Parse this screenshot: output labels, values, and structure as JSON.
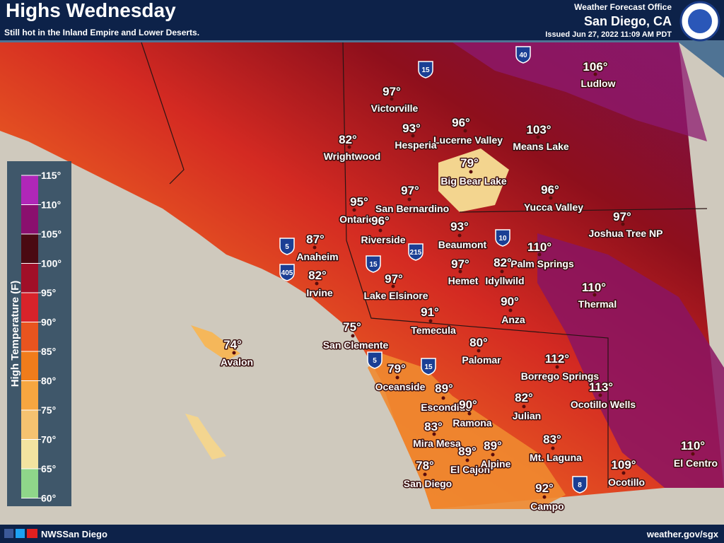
{
  "header": {
    "title": "Highs Wednesday",
    "subtitle": "Still hot in the Inland Empire and Lower Deserts.",
    "office": "Weather Forecast Office",
    "location": "San Diego, CA",
    "issued": "Issued Jun 27, 2022 11:09 AM PDT"
  },
  "legend": {
    "title": "High Temperature (F)",
    "ticks": [
      "115°",
      "110°",
      "105°",
      "100°",
      "95°",
      "90°",
      "85°",
      "80°",
      "75°",
      "70°",
      "65°",
      "60°"
    ]
  },
  "cities": [
    {
      "temp": "106°",
      "name": "Ludlow"
    },
    {
      "temp": "97°",
      "name": "Victorville"
    },
    {
      "temp": "96°",
      "name": "Lucerne Valley"
    },
    {
      "temp": "93°",
      "name": "Hesperia"
    },
    {
      "temp": "103°",
      "name": "Means Lake"
    },
    {
      "temp": "82°",
      "name": "Wrightwood"
    },
    {
      "temp": "79°",
      "name": "Big Bear Lake"
    },
    {
      "temp": "97°",
      "name": "San Bernardino"
    },
    {
      "temp": "96°",
      "name": "Yucca Valley"
    },
    {
      "temp": "95°",
      "name": "Ontario"
    },
    {
      "temp": "96°",
      "name": "Riverside"
    },
    {
      "temp": "97°",
      "name": "Joshua Tree NP"
    },
    {
      "temp": "87°",
      "name": "Anaheim"
    },
    {
      "temp": "93°",
      "name": "Beaumont"
    },
    {
      "temp": "110°",
      "name": "Palm Springs"
    },
    {
      "temp": "97°",
      "name": "Hemet"
    },
    {
      "temp": "82°",
      "name": "Idyllwild"
    },
    {
      "temp": "82°",
      "name": "Irvine"
    },
    {
      "temp": "97°",
      "name": "Lake Elsinore"
    },
    {
      "temp": "110°",
      "name": "Thermal"
    },
    {
      "temp": "90°",
      "name": "Anza"
    },
    {
      "temp": "91°",
      "name": "Temecula"
    },
    {
      "temp": "74°",
      "name": "Avalon"
    },
    {
      "temp": "75°",
      "name": "San Clemente"
    },
    {
      "temp": "80°",
      "name": "Palomar"
    },
    {
      "temp": "112°",
      "name": "Borrego Springs"
    },
    {
      "temp": "79°",
      "name": "Oceanside"
    },
    {
      "temp": "89°",
      "name": "Escondido"
    },
    {
      "temp": "90°",
      "name": "Ramona"
    },
    {
      "temp": "113°",
      "name": "Ocotillo Wells"
    },
    {
      "temp": "82°",
      "name": "Julian"
    },
    {
      "temp": "83°",
      "name": "Mira Mesa"
    },
    {
      "temp": "83°",
      "name": "Mt. Laguna"
    },
    {
      "temp": "89°",
      "name": "El Cajon"
    },
    {
      "temp": "89°",
      "name": "Alpine"
    },
    {
      "temp": "78°",
      "name": "San Diego"
    },
    {
      "temp": "110°",
      "name": "El Centro"
    },
    {
      "temp": "109°",
      "name": "Ocotillo"
    },
    {
      "temp": "92°",
      "name": "Campo"
    }
  ],
  "highways": [
    "15",
    "40",
    "5",
    "405",
    "15",
    "215",
    "10",
    "5",
    "15",
    "8"
  ],
  "footer": {
    "social": "NWSSan Diego",
    "url": "weather.gov/sgx"
  }
}
